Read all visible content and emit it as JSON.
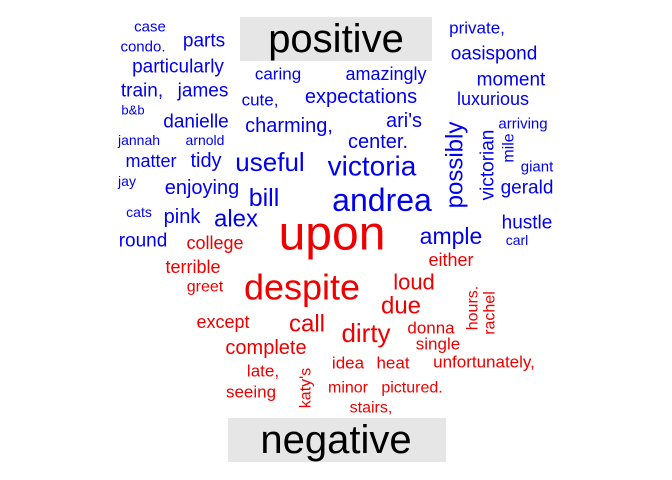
{
  "chart_data": {
    "type": "comparison word cloud",
    "groups": [
      {
        "label": "positive",
        "color": "#0000ee"
      },
      {
        "label": "negative",
        "color": "#ee0000"
      }
    ],
    "label_box_color": "#e6e6e6",
    "words": [
      {
        "text": "positive",
        "group": "label"
      },
      {
        "text": "negative",
        "group": "label"
      },
      {
        "text": "case",
        "group": "positive"
      },
      {
        "text": "condo.",
        "group": "positive"
      },
      {
        "text": "parts",
        "group": "positive"
      },
      {
        "text": "private,",
        "group": "positive"
      },
      {
        "text": "oasispond",
        "group": "positive"
      },
      {
        "text": "particularly",
        "group": "positive"
      },
      {
        "text": "caring",
        "group": "positive"
      },
      {
        "text": "amazingly",
        "group": "positive"
      },
      {
        "text": "moment",
        "group": "positive"
      },
      {
        "text": "train,",
        "group": "positive"
      },
      {
        "text": "james",
        "group": "positive"
      },
      {
        "text": "cute,",
        "group": "positive"
      },
      {
        "text": "expectations",
        "group": "positive"
      },
      {
        "text": "luxurious",
        "group": "positive"
      },
      {
        "text": "b&b",
        "group": "positive"
      },
      {
        "text": "danielle",
        "group": "positive"
      },
      {
        "text": "charming,",
        "group": "positive"
      },
      {
        "text": "ari's",
        "group": "positive"
      },
      {
        "text": "arriving",
        "group": "positive"
      },
      {
        "text": "jannah",
        "group": "positive"
      },
      {
        "text": "arnold",
        "group": "positive"
      },
      {
        "text": "center.",
        "group": "positive"
      },
      {
        "text": "possibly",
        "group": "positive"
      },
      {
        "text": "victorian",
        "group": "positive"
      },
      {
        "text": "mile",
        "group": "positive"
      },
      {
        "text": "matter",
        "group": "positive"
      },
      {
        "text": "tidy",
        "group": "positive"
      },
      {
        "text": "useful",
        "group": "positive"
      },
      {
        "text": "victoria",
        "group": "positive"
      },
      {
        "text": "giant",
        "group": "positive"
      },
      {
        "text": "jay",
        "group": "positive"
      },
      {
        "text": "enjoying",
        "group": "positive"
      },
      {
        "text": "bill",
        "group": "positive"
      },
      {
        "text": "andrea",
        "group": "positive"
      },
      {
        "text": "gerald",
        "group": "positive"
      },
      {
        "text": "cats",
        "group": "positive"
      },
      {
        "text": "pink",
        "group": "positive"
      },
      {
        "text": "alex",
        "group": "positive"
      },
      {
        "text": "hustle",
        "group": "positive"
      },
      {
        "text": "round",
        "group": "positive"
      },
      {
        "text": "ample",
        "group": "positive"
      },
      {
        "text": "carl",
        "group": "positive"
      },
      {
        "text": "upon",
        "group": "negative"
      },
      {
        "text": "college",
        "group": "negative"
      },
      {
        "text": "either",
        "group": "negative"
      },
      {
        "text": "terrible",
        "group": "negative"
      },
      {
        "text": "despite",
        "group": "negative"
      },
      {
        "text": "loud",
        "group": "negative"
      },
      {
        "text": "greet",
        "group": "negative"
      },
      {
        "text": "hours.",
        "group": "negative"
      },
      {
        "text": "rachel",
        "group": "negative"
      },
      {
        "text": "due",
        "group": "negative"
      },
      {
        "text": "except",
        "group": "negative"
      },
      {
        "text": "call",
        "group": "negative"
      },
      {
        "text": "dirty",
        "group": "negative"
      },
      {
        "text": "donna",
        "group": "negative"
      },
      {
        "text": "complete",
        "group": "negative"
      },
      {
        "text": "single",
        "group": "negative"
      },
      {
        "text": "idea",
        "group": "negative"
      },
      {
        "text": "heat",
        "group": "negative"
      },
      {
        "text": "unfortunately,",
        "group": "negative"
      },
      {
        "text": "late,",
        "group": "negative"
      },
      {
        "text": "katy's",
        "group": "negative"
      },
      {
        "text": "minor",
        "group": "negative"
      },
      {
        "text": "pictured.",
        "group": "negative"
      },
      {
        "text": "seeing",
        "group": "negative"
      },
      {
        "text": "stairs,",
        "group": "negative"
      }
    ]
  }
}
